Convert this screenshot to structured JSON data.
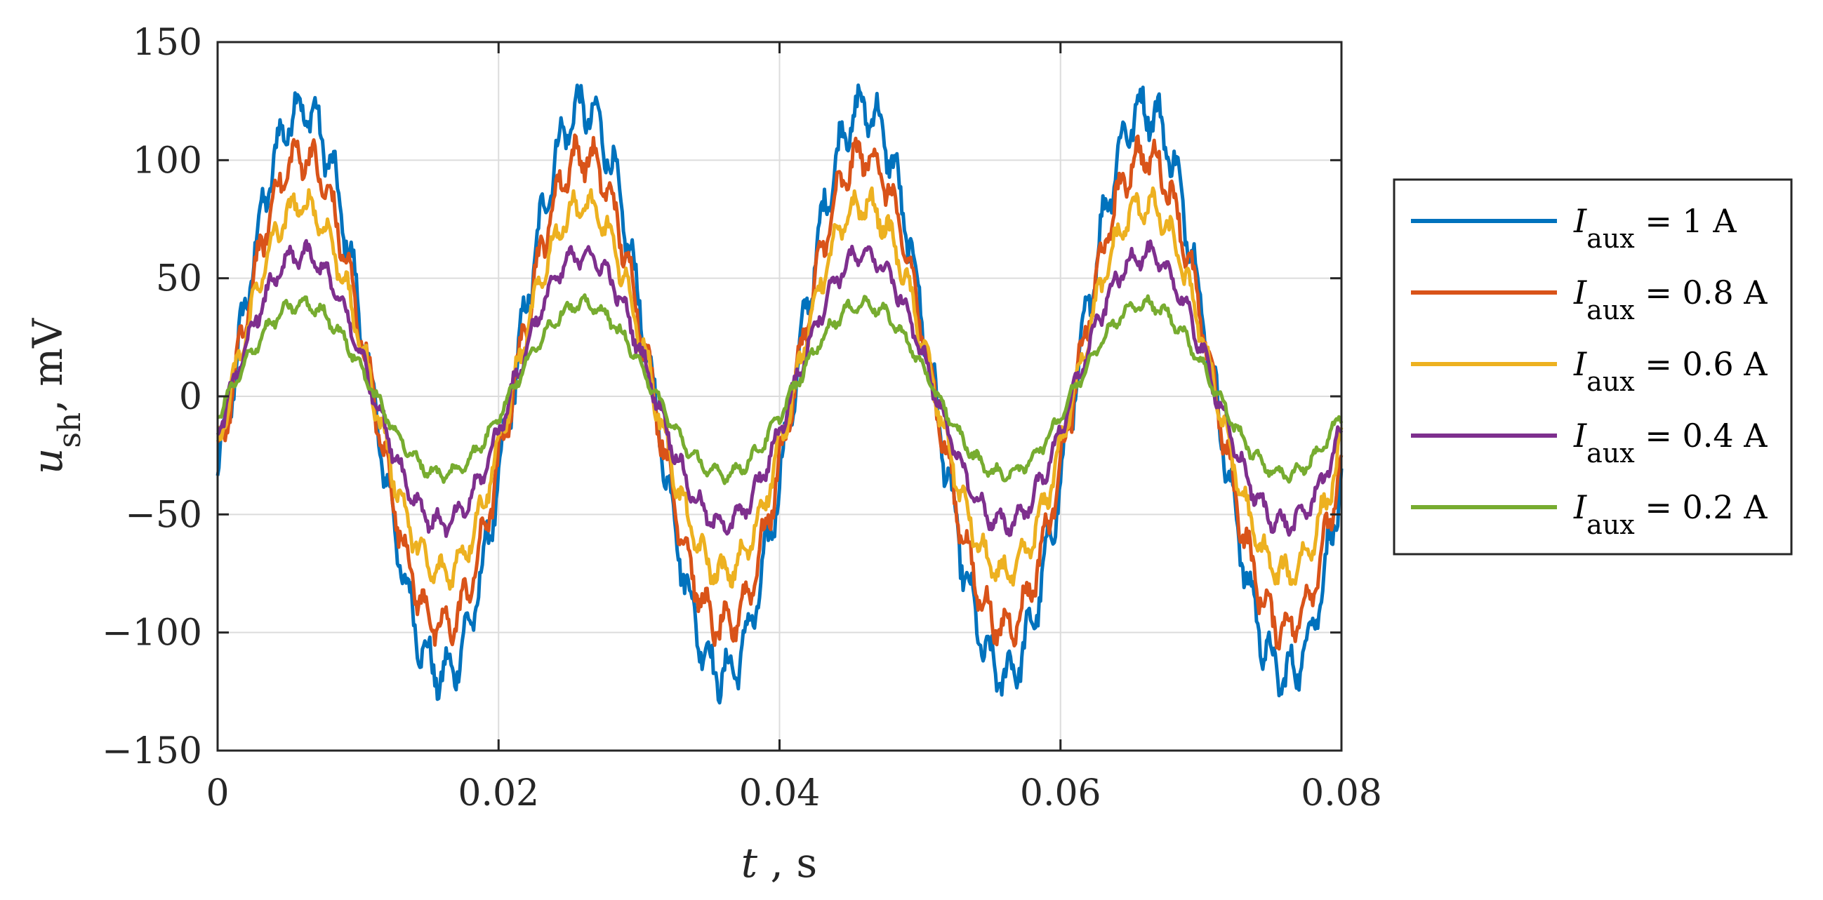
{
  "chart_data": {
    "type": "line",
    "xlabel": {
      "var": "t",
      "sep": " , ",
      "unit": "s"
    },
    "ylabel": {
      "var": "u",
      "sub": "sh",
      "unit": ", mV"
    },
    "xlim": [
      0,
      0.08
    ],
    "ylim": [
      -150,
      150
    ],
    "x_ticks": [
      0,
      0.02,
      0.04,
      0.06,
      0.08
    ],
    "x_tick_labels": [
      "0",
      "0.02",
      "0.04",
      "0.06",
      "0.08"
    ],
    "y_ticks": [
      150,
      100,
      50,
      0,
      -50,
      -100,
      -150
    ],
    "y_tick_labels": [
      "150",
      "100",
      "50",
      "0",
      "−50",
      "−100",
      "−150"
    ],
    "grid": true,
    "legend_position": "outside-right",
    "waveform": {
      "frequency_hz": 50,
      "phase_offset_s": 0.001,
      "noise_ripple": true
    },
    "series": [
      {
        "label_var": "I",
        "label_sub": "aux",
        "label_value": " = 1 A",
        "color": "#0072BD",
        "amplitude_mV": 120,
        "offset_mV": 2
      },
      {
        "label_var": "I",
        "label_sub": "aux",
        "label_value": " = 0.8 A",
        "color": "#D95319",
        "amplitude_mV": 100,
        "offset_mV": 2
      },
      {
        "label_var": "I",
        "label_sub": "aux",
        "label_value": " = 0.6 A",
        "color": "#EDB120",
        "amplitude_mV": 78,
        "offset_mV": 3
      },
      {
        "label_var": "I",
        "label_sub": "aux",
        "label_value": " = 0.4 A",
        "color": "#7E2F8E",
        "amplitude_mV": 57,
        "offset_mV": 3
      },
      {
        "label_var": "I",
        "label_sub": "aux",
        "label_value": " = 0.2 A",
        "color": "#77AC30",
        "amplitude_mV": 36,
        "offset_mV": 3
      }
    ]
  }
}
